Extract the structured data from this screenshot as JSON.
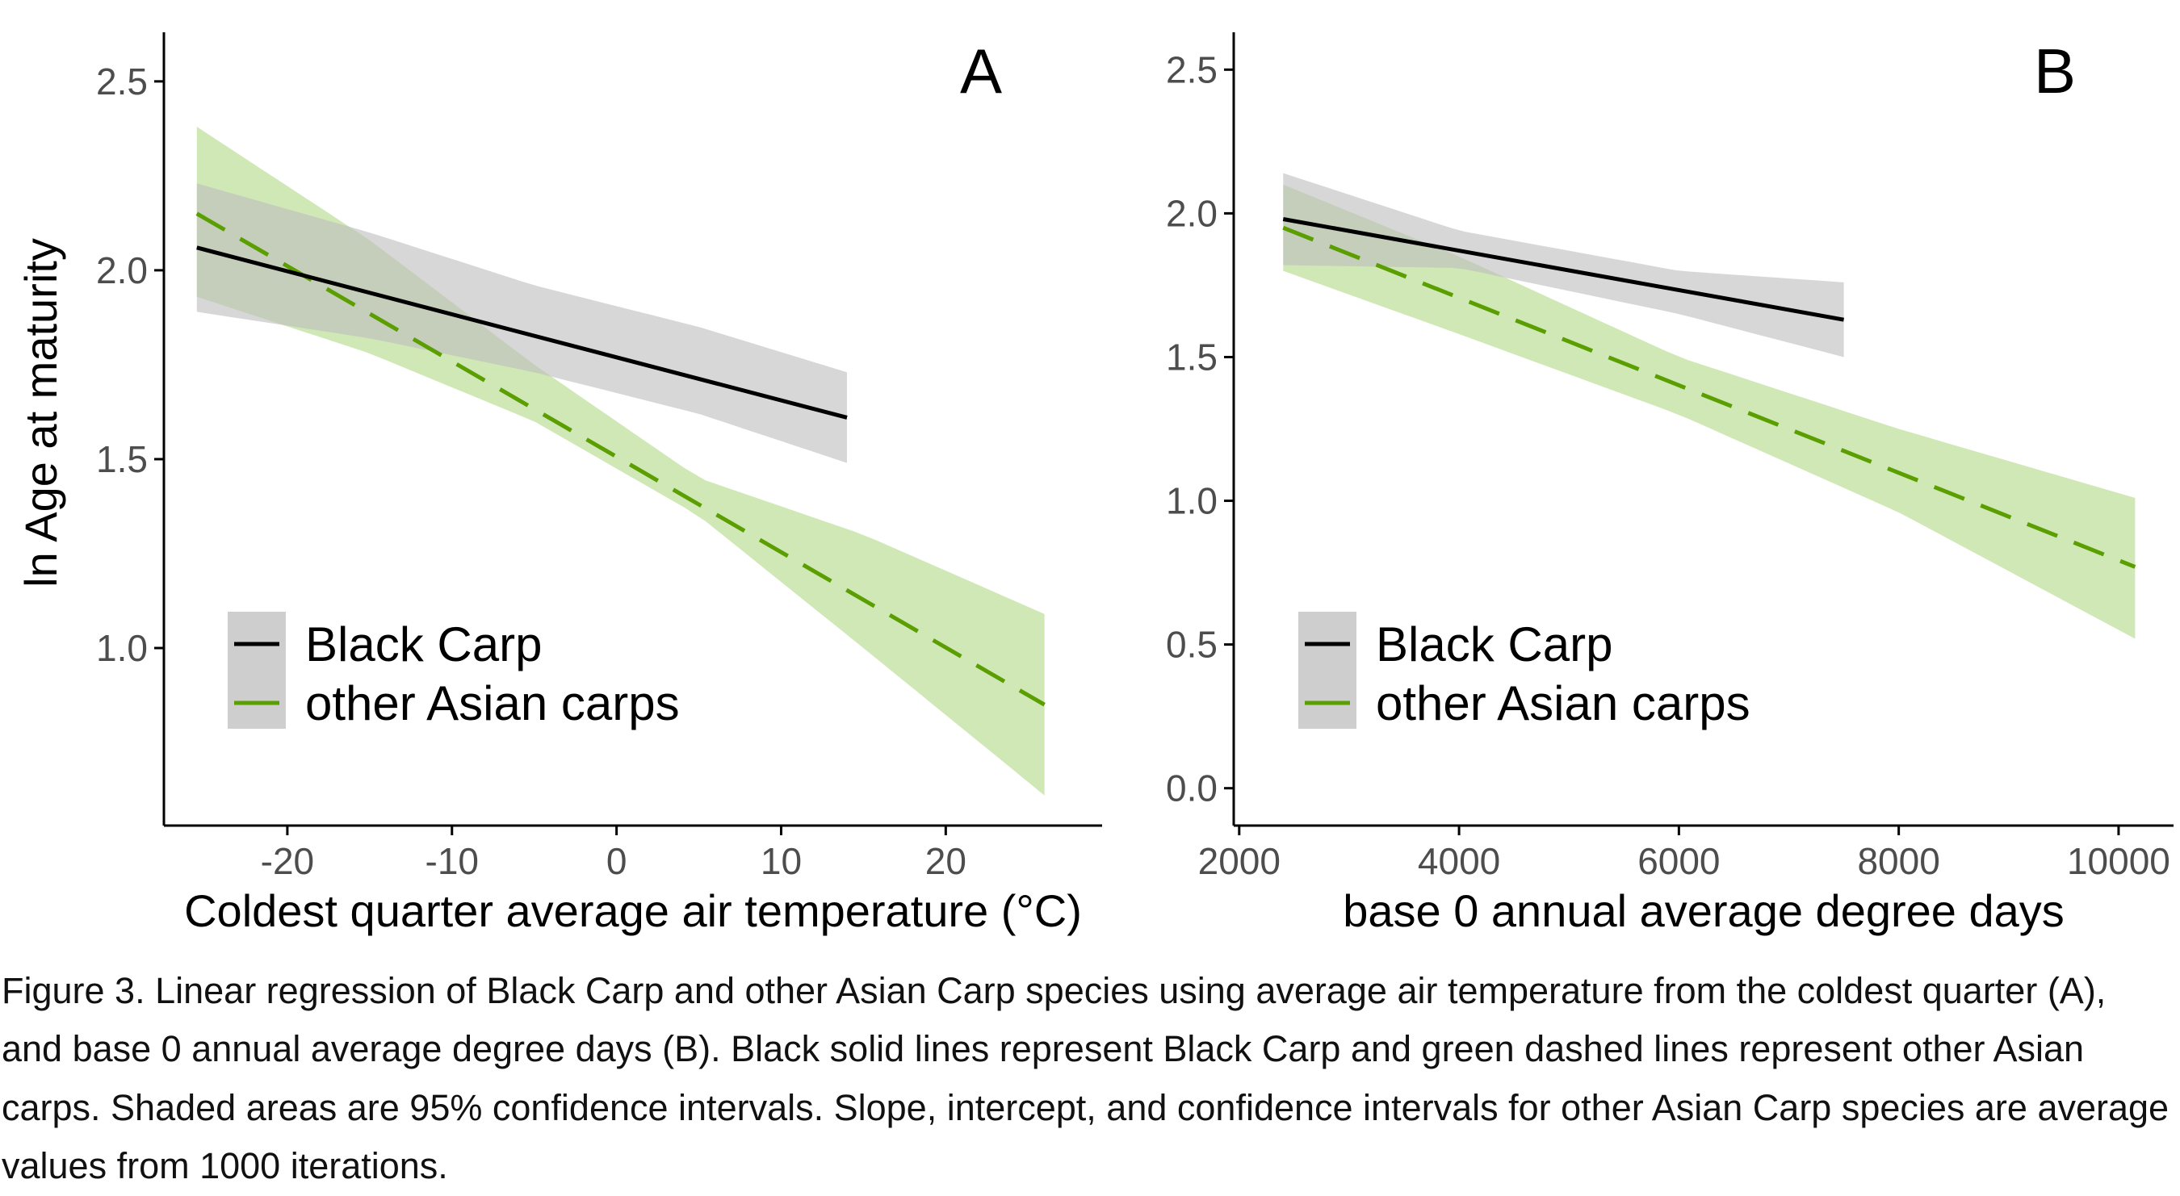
{
  "figure_caption": "Figure 3. Linear regression of Black Carp and other Asian Carp species using average air temperature from the coldest quarter (A), and base 0 annual average degree days (B). Black solid lines represent Black Carp and green dashed lines represent other Asian carps. Shaded areas are 95% confidence intervals. Slope, intercept, and confidence intervals for other Asian Carp species are average values from 1000 iterations.",
  "colors": {
    "black_carp_line": "#000000",
    "black_carp_band": "#bdbdbd",
    "asian_line": "#5a9e00",
    "asian_band": "#a8d67a",
    "axis": "#000000",
    "tick_label": "#4d4d4d"
  },
  "chart_data": [
    {
      "type": "line",
      "panel_label": "A",
      "xlabel": "Coldest quarter average air temperature (°C)",
      "ylabel": "ln Age at maturity",
      "xlim": [
        -27.5,
        29.5
      ],
      "ylim": [
        0.53,
        2.63
      ],
      "xticks": [
        -20,
        -10,
        0,
        10,
        20
      ],
      "xtick_labels": [
        "-20",
        "-10",
        "0",
        "10",
        "20"
      ],
      "yticks": [
        1.0,
        1.5,
        2.0,
        2.5
      ],
      "ytick_labels": [
        "1.0",
        "1.5",
        "2.0",
        "2.5"
      ],
      "grid": false,
      "legend_position": "bottom-left",
      "series": [
        {
          "name": "Black Carp",
          "line_style": "solid",
          "x": [
            -25.5,
            14.0
          ],
          "y": [
            2.06,
            1.61
          ],
          "ci_x": [
            -25.5,
            -15.0,
            -5.0,
            5.0,
            14.0
          ],
          "ci_lower": [
            1.89,
            1.82,
            1.73,
            1.62,
            1.49
          ],
          "ci_upper": [
            2.23,
            2.1,
            1.96,
            1.85,
            1.73
          ]
        },
        {
          "name": "other Asian carps",
          "line_style": "dashed",
          "x": [
            -25.5,
            26.0
          ],
          "y": [
            2.15,
            0.85
          ],
          "ci_x": [
            -25.5,
            -15.0,
            -5.0,
            5.0,
            15.0,
            26.0
          ],
          "ci_lower": [
            1.93,
            1.78,
            1.6,
            1.35,
            1.0,
            0.61
          ],
          "ci_upper": [
            2.38,
            2.08,
            1.75,
            1.45,
            1.3,
            1.09
          ]
        }
      ]
    },
    {
      "type": "line",
      "panel_label": "B",
      "xlabel": "base 0 annual average degree days",
      "ylabel": "",
      "xlim": [
        1950,
        10500
      ],
      "ylim": [
        -0.13,
        2.63
      ],
      "xticks": [
        2000,
        4000,
        6000,
        8000,
        10000
      ],
      "xtick_labels": [
        "2000",
        "4000",
        "6000",
        "8000",
        "10000"
      ],
      "yticks": [
        0.0,
        0.5,
        1.0,
        1.5,
        2.0,
        2.5
      ],
      "ytick_labels": [
        "0.0",
        "0.5",
        "1.0",
        "1.5",
        "2.0",
        "2.5"
      ],
      "grid": false,
      "legend_position": "bottom-left",
      "series": [
        {
          "name": "Black Carp",
          "line_style": "solid",
          "x": [
            2400,
            7500
          ],
          "y": [
            1.98,
            1.63
          ],
          "ci_x": [
            2400,
            4000,
            6000,
            7500
          ],
          "ci_lower": [
            1.82,
            1.81,
            1.65,
            1.5
          ],
          "ci_upper": [
            2.14,
            1.94,
            1.8,
            1.76
          ]
        },
        {
          "name": "other Asian carps",
          "line_style": "dashed",
          "x": [
            2400,
            10150
          ],
          "y": [
            1.95,
            0.77
          ],
          "ci_x": [
            2400,
            4000,
            6000,
            8000,
            10150
          ],
          "ci_lower": [
            1.8,
            1.58,
            1.3,
            0.96,
            0.52
          ],
          "ci_upper": [
            2.1,
            1.85,
            1.5,
            1.25,
            1.01
          ]
        }
      ]
    }
  ]
}
